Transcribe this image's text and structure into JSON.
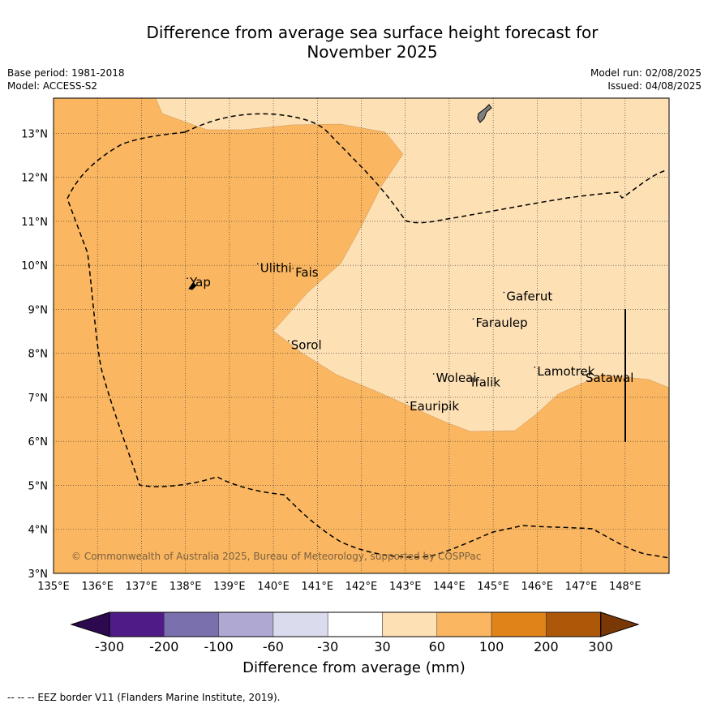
{
  "title_line1": "Difference from average sea surface height forecast for",
  "title_line2": "November 2025",
  "meta": {
    "base_period": "Base period: 1981-2018",
    "model": "Model: ACCESS-S2",
    "model_run": "Model run: 02/08/2025",
    "issued": "Issued: 04/08/2025"
  },
  "map": {
    "lon_range": [
      135,
      149
    ],
    "lat_range": [
      3,
      13.8
    ],
    "lon_ticks": [
      "135°E",
      "136°E",
      "137°E",
      "138°E",
      "139°E",
      "140°E",
      "141°E",
      "142°E",
      "143°E",
      "144°E",
      "145°E",
      "146°E",
      "147°E",
      "148°E"
    ],
    "lat_ticks": [
      "3°N",
      "4°N",
      "5°N",
      "6°N",
      "7°N",
      "8°N",
      "9°N",
      "10°N",
      "11°N",
      "12°N",
      "13°N"
    ],
    "background_color": "#fab660",
    "region_color": "#fde0b4",
    "copyright": "© Commonwealth of Australia 2025, Bureau of Meteorology, supported by COSPPac",
    "places": [
      {
        "name": "Ulithi",
        "lon": 139.7,
        "lat": 9.85
      },
      {
        "name": "Fais",
        "lon": 140.5,
        "lat": 9.75
      },
      {
        "name": "Yap",
        "lon": 138.1,
        "lat": 9.52
      },
      {
        "name": "Gaferut",
        "lon": 145.3,
        "lat": 9.2
      },
      {
        "name": "Faraulep",
        "lon": 144.6,
        "lat": 8.6
      },
      {
        "name": "Sorol",
        "lon": 140.4,
        "lat": 8.1
      },
      {
        "name": "Lamotrek",
        "lon": 146.0,
        "lat": 7.5
      },
      {
        "name": "Woleai",
        "lon": 143.7,
        "lat": 7.35
      },
      {
        "name": "Ifalik",
        "lon": 144.5,
        "lat": 7.25
      },
      {
        "name": "Satawal",
        "lon": 147.1,
        "lat": 7.35
      },
      {
        "name": "Eauripik",
        "lon": 143.1,
        "lat": 6.7
      }
    ]
  },
  "colorbar": {
    "title": "Difference from average (mm)",
    "ticks": [
      "-300",
      "-200",
      "-100",
      "-60",
      "-30",
      "30",
      "60",
      "100",
      "200",
      "300"
    ],
    "colors": [
      "#2d0a4f",
      "#4f1c87",
      "#7b70ae",
      "#aea8d2",
      "#dbdbee",
      "#ffffff",
      "#fde0b4",
      "#fab660",
      "#e0841a",
      "#ad5708",
      "#7a3806"
    ]
  },
  "footnote": "--  --  -- EEZ border V11 (Flanders Marine Institute, 2019)."
}
